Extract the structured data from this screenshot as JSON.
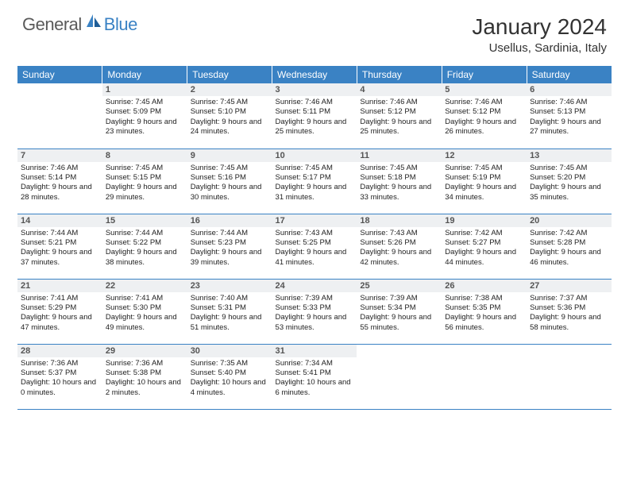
{
  "logo": {
    "text1": "General",
    "text2": "Blue"
  },
  "title": "January 2024",
  "location": "Usellus, Sardinia, Italy",
  "colors": {
    "header_bg": "#3a82c4",
    "header_text": "#ffffff",
    "daynum_bg": "#eef0f2",
    "border": "#3a82c4",
    "body_text": "#222222",
    "logo_gray": "#5a5a5a",
    "logo_blue": "#3a82c4"
  },
  "weekdays": [
    "Sunday",
    "Monday",
    "Tuesday",
    "Wednesday",
    "Thursday",
    "Friday",
    "Saturday"
  ],
  "weeks": [
    [
      null,
      {
        "n": "1",
        "sr": "7:45 AM",
        "ss": "5:09 PM",
        "dl": "9 hours and 23 minutes."
      },
      {
        "n": "2",
        "sr": "7:45 AM",
        "ss": "5:10 PM",
        "dl": "9 hours and 24 minutes."
      },
      {
        "n": "3",
        "sr": "7:46 AM",
        "ss": "5:11 PM",
        "dl": "9 hours and 25 minutes."
      },
      {
        "n": "4",
        "sr": "7:46 AM",
        "ss": "5:12 PM",
        "dl": "9 hours and 25 minutes."
      },
      {
        "n": "5",
        "sr": "7:46 AM",
        "ss": "5:12 PM",
        "dl": "9 hours and 26 minutes."
      },
      {
        "n": "6",
        "sr": "7:46 AM",
        "ss": "5:13 PM",
        "dl": "9 hours and 27 minutes."
      }
    ],
    [
      {
        "n": "7",
        "sr": "7:46 AM",
        "ss": "5:14 PM",
        "dl": "9 hours and 28 minutes."
      },
      {
        "n": "8",
        "sr": "7:45 AM",
        "ss": "5:15 PM",
        "dl": "9 hours and 29 minutes."
      },
      {
        "n": "9",
        "sr": "7:45 AM",
        "ss": "5:16 PM",
        "dl": "9 hours and 30 minutes."
      },
      {
        "n": "10",
        "sr": "7:45 AM",
        "ss": "5:17 PM",
        "dl": "9 hours and 31 minutes."
      },
      {
        "n": "11",
        "sr": "7:45 AM",
        "ss": "5:18 PM",
        "dl": "9 hours and 33 minutes."
      },
      {
        "n": "12",
        "sr": "7:45 AM",
        "ss": "5:19 PM",
        "dl": "9 hours and 34 minutes."
      },
      {
        "n": "13",
        "sr": "7:45 AM",
        "ss": "5:20 PM",
        "dl": "9 hours and 35 minutes."
      }
    ],
    [
      {
        "n": "14",
        "sr": "7:44 AM",
        "ss": "5:21 PM",
        "dl": "9 hours and 37 minutes."
      },
      {
        "n": "15",
        "sr": "7:44 AM",
        "ss": "5:22 PM",
        "dl": "9 hours and 38 minutes."
      },
      {
        "n": "16",
        "sr": "7:44 AM",
        "ss": "5:23 PM",
        "dl": "9 hours and 39 minutes."
      },
      {
        "n": "17",
        "sr": "7:43 AM",
        "ss": "5:25 PM",
        "dl": "9 hours and 41 minutes."
      },
      {
        "n": "18",
        "sr": "7:43 AM",
        "ss": "5:26 PM",
        "dl": "9 hours and 42 minutes."
      },
      {
        "n": "19",
        "sr": "7:42 AM",
        "ss": "5:27 PM",
        "dl": "9 hours and 44 minutes."
      },
      {
        "n": "20",
        "sr": "7:42 AM",
        "ss": "5:28 PM",
        "dl": "9 hours and 46 minutes."
      }
    ],
    [
      {
        "n": "21",
        "sr": "7:41 AM",
        "ss": "5:29 PM",
        "dl": "9 hours and 47 minutes."
      },
      {
        "n": "22",
        "sr": "7:41 AM",
        "ss": "5:30 PM",
        "dl": "9 hours and 49 minutes."
      },
      {
        "n": "23",
        "sr": "7:40 AM",
        "ss": "5:31 PM",
        "dl": "9 hours and 51 minutes."
      },
      {
        "n": "24",
        "sr": "7:39 AM",
        "ss": "5:33 PM",
        "dl": "9 hours and 53 minutes."
      },
      {
        "n": "25",
        "sr": "7:39 AM",
        "ss": "5:34 PM",
        "dl": "9 hours and 55 minutes."
      },
      {
        "n": "26",
        "sr": "7:38 AM",
        "ss": "5:35 PM",
        "dl": "9 hours and 56 minutes."
      },
      {
        "n": "27",
        "sr": "7:37 AM",
        "ss": "5:36 PM",
        "dl": "9 hours and 58 minutes."
      }
    ],
    [
      {
        "n": "28",
        "sr": "7:36 AM",
        "ss": "5:37 PM",
        "dl": "10 hours and 0 minutes."
      },
      {
        "n": "29",
        "sr": "7:36 AM",
        "ss": "5:38 PM",
        "dl": "10 hours and 2 minutes."
      },
      {
        "n": "30",
        "sr": "7:35 AM",
        "ss": "5:40 PM",
        "dl": "10 hours and 4 minutes."
      },
      {
        "n": "31",
        "sr": "7:34 AM",
        "ss": "5:41 PM",
        "dl": "10 hours and 6 minutes."
      },
      null,
      null,
      null
    ]
  ],
  "labels": {
    "sunrise": "Sunrise:",
    "sunset": "Sunset:",
    "daylight": "Daylight:"
  }
}
